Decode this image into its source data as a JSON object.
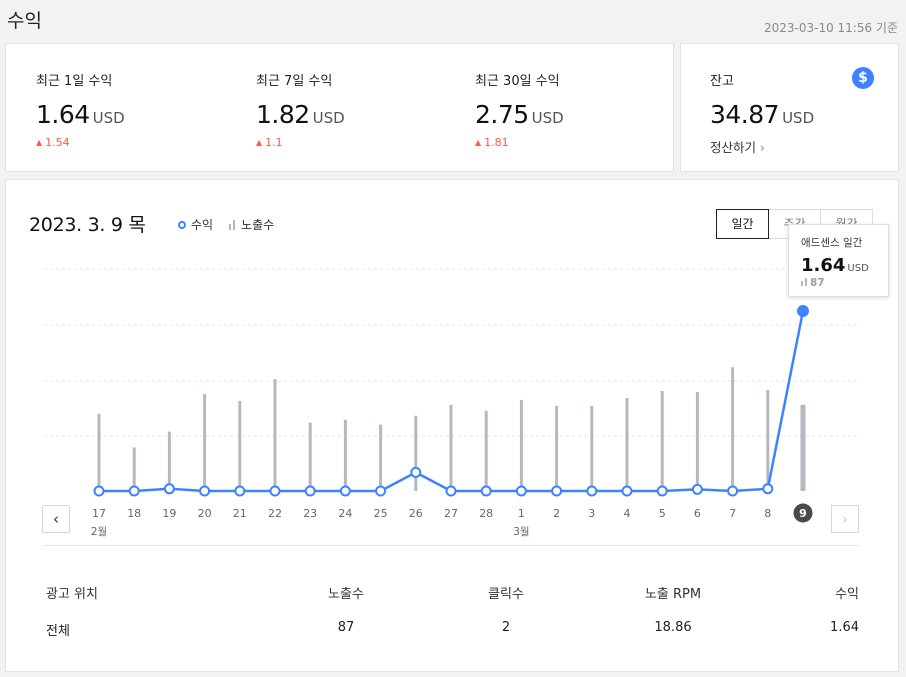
{
  "header": {
    "title": "수익",
    "timestamp": "2023-03-10 11:56 기준"
  },
  "summary": [
    {
      "label": "최근 1일 수익",
      "value": "1.64",
      "unit": "USD",
      "delta": "1.54"
    },
    {
      "label": "최근 7일 수익",
      "value": "1.82",
      "unit": "USD",
      "delta": "1.1"
    },
    {
      "label": "최근 30일 수익",
      "value": "2.75",
      "unit": "USD",
      "delta": "1.81"
    }
  ],
  "balance": {
    "label": "잔고",
    "value": "34.87",
    "unit": "USD",
    "settle_label": "정산하기",
    "icon": "dollar-icon",
    "icon_glyph": "$",
    "icon_color": "#3e82ff"
  },
  "chart_header": {
    "date": "2023. 3. 9 목",
    "legend_revenue": "수익",
    "legend_impressions": "노출수",
    "tabs": [
      "일간",
      "주간",
      "월간"
    ],
    "active_tab": "일간"
  },
  "tooltip": {
    "title": "애드센스 일간",
    "value": "1.64",
    "unit": "USD",
    "impressions": "87"
  },
  "chart_data": {
    "type": "line",
    "categories": [
      "17",
      "18",
      "19",
      "20",
      "21",
      "22",
      "23",
      "24",
      "25",
      "26",
      "27",
      "28",
      "1",
      "2",
      "3",
      "4",
      "5",
      "6",
      "7",
      "8",
      "9"
    ],
    "month_labels": [
      {
        "index": 0,
        "label": "2월"
      },
      {
        "index": 12,
        "label": "3월"
      }
    ],
    "series": [
      {
        "name": "수익",
        "kind": "line",
        "color": "#3e82ff",
        "values": [
          0,
          0,
          0.02,
          0,
          0,
          0,
          0,
          0,
          0,
          0.17,
          0,
          0,
          0,
          0,
          0,
          0,
          0,
          0.015,
          0,
          0.02,
          1.64
        ]
      },
      {
        "name": "노출수",
        "kind": "bar",
        "color": "#b2b9c2",
        "values": [
          78,
          44,
          60,
          98,
          91,
          113,
          69,
          72,
          67,
          76,
          87,
          81,
          92,
          86,
          86,
          94,
          101,
          100,
          125,
          102,
          87
        ]
      }
    ],
    "selected_index": 20
  },
  "nav": {
    "prev": "‹",
    "next": "›"
  },
  "table": {
    "headers": [
      "광고 위치",
      "노출수",
      "클릭수",
      "노출 RPM",
      "수익"
    ],
    "rows": [
      [
        "전체",
        "87",
        "2",
        "18.86",
        "1.64"
      ]
    ]
  }
}
